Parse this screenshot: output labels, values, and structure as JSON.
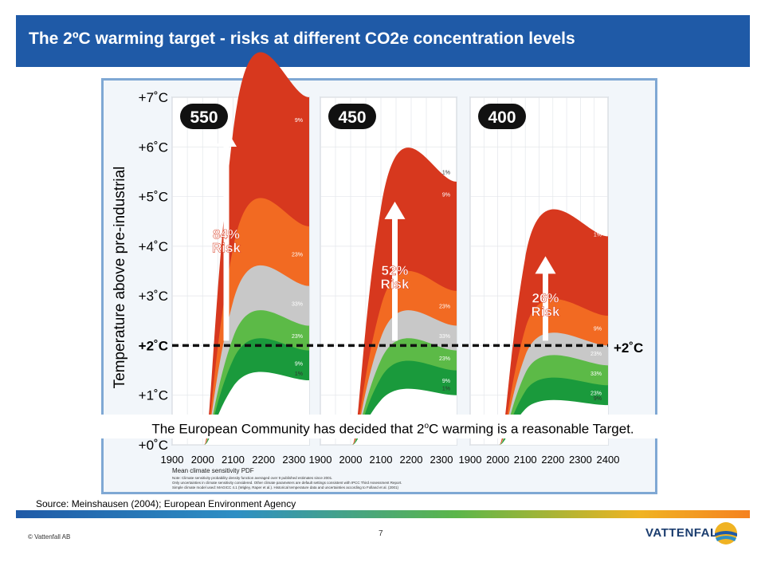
{
  "slide": {
    "title": "The 2ºC warming target  - risks at different CO2e concentration  levels",
    "caption_before": "The European Community has decided that 2",
    "caption_sup": "o",
    "caption_after": "C warming is a reasonable Target.",
    "source": "Source: Meinshausen (2004); European Environment Agency",
    "copyright": "© Vattenfall AB",
    "page_number": "7",
    "brand": "VATTENFALL"
  },
  "colors": {
    "header": "#1f5aa7",
    "red_dark": "#d7381e",
    "red_orange": "#f26a22",
    "grey": "#c8c8c8",
    "green_light": "#5cba47",
    "green_dark": "#1a9a3c",
    "white": "#ffffff"
  },
  "chart_data": {
    "type": "area",
    "ylabel": "Temperature above pre-industrial",
    "yticks": [
      "+0˚C",
      "+1˚C",
      "+2˚C",
      "+3˚C",
      "+4˚C",
      "+5˚C",
      "+6˚C",
      "+7˚C"
    ],
    "ylim": [
      0,
      7
    ],
    "target_label": "+2˚C",
    "target_value": 2,
    "legend_title": "Mean climate sensitivity PDF",
    "notes": [
      "Note: Climate sensitivity probability density function averaged over 9 published estimates since 2001.",
      "Only uncertainties in climate sensitivity considered. Other climate parameters are default settings consistent with IPCC Third Assessment Report.",
      "Simple climate model used: MAGICC 4.1 (Wigley, Raper et al.). Historical temperature data and uncertainties according to Folland et al. (2001)"
    ],
    "panels": [
      {
        "label": "550",
        "xticks": [
          "1900",
          "2000",
          "2100",
          "2200",
          "2300"
        ],
        "xlim": [
          1900,
          2350
        ],
        "risk_percent": "84%",
        "risk_word": "Risk",
        "band_labels": [
          "9%",
          "23%",
          "33%",
          "23%",
          "9%",
          "1%"
        ],
        "bands": [
          {
            "level": 7.0,
            "color": "red_dark"
          },
          {
            "level": 4.4,
            "color": "red_orange"
          },
          {
            "level": 3.2,
            "color": "grey"
          },
          {
            "level": 2.4,
            "color": "green_light"
          },
          {
            "level": 1.9,
            "color": "green_dark"
          },
          {
            "level": 1.3,
            "color": "white"
          }
        ]
      },
      {
        "label": "450",
        "xticks": [
          "1900",
          "2000",
          "2100",
          "2200",
          "2300"
        ],
        "xlim": [
          1900,
          2350
        ],
        "risk_percent": "52%",
        "risk_word": "Risk",
        "band_labels": [
          "1%",
          "9%",
          "23%",
          "33%",
          "23%",
          "9%",
          "1%"
        ],
        "bands": [
          {
            "level": 5.3,
            "color": "red_dark"
          },
          {
            "level": 3.1,
            "color": "red_orange"
          },
          {
            "level": 2.4,
            "color": "grey"
          },
          {
            "level": 1.9,
            "color": "green_light"
          },
          {
            "level": 1.5,
            "color": "green_dark"
          },
          {
            "level": 1.0,
            "color": "white"
          }
        ]
      },
      {
        "label": "400",
        "xticks": [
          "1900",
          "2000",
          "2100",
          "2200",
          "2300",
          "2400"
        ],
        "xlim": [
          1900,
          2400
        ],
        "risk_percent": "26%",
        "risk_word": "Risk",
        "band_labels": [
          "1%",
          "9%",
          "23%",
          "33%",
          "23%",
          "9%"
        ],
        "bands": [
          {
            "level": 4.2,
            "color": "red_dark"
          },
          {
            "level": 2.6,
            "color": "red_orange"
          },
          {
            "level": 2.0,
            "color": "grey"
          },
          {
            "level": 1.6,
            "color": "green_light"
          },
          {
            "level": 1.2,
            "color": "green_dark"
          },
          {
            "level": 0.8,
            "color": "white"
          }
        ]
      }
    ]
  }
}
